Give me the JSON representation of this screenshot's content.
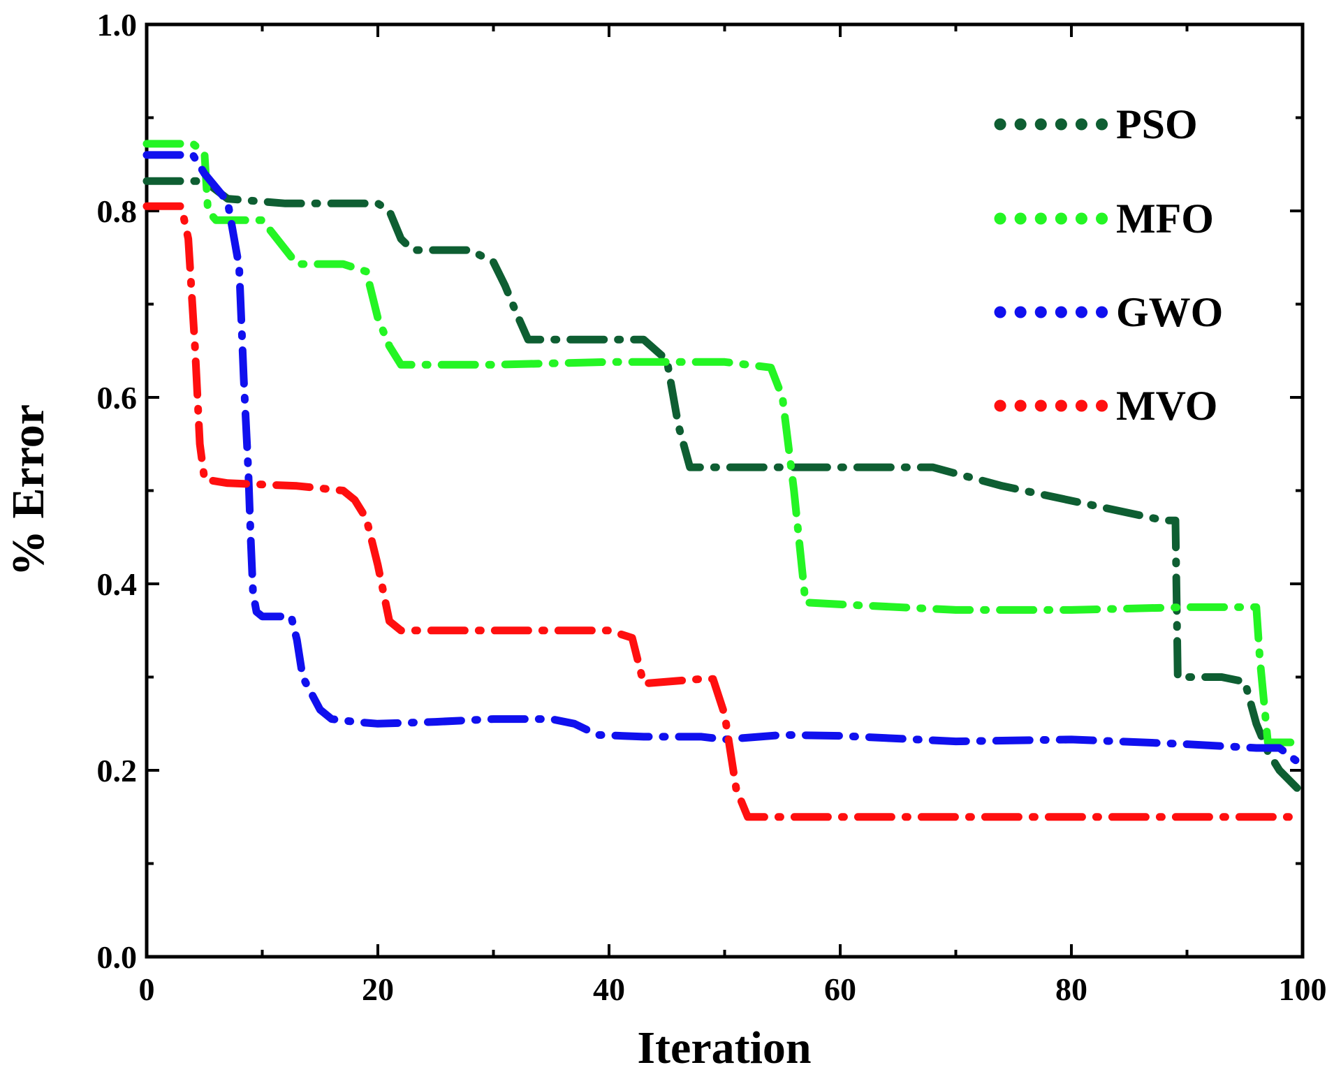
{
  "chart_data": {
    "type": "line",
    "title": "",
    "xlabel": "Iteration",
    "ylabel": "% Error",
    "xlim": [
      0,
      100
    ],
    "ylim": [
      0.0,
      1.0
    ],
    "xticks": [
      "0",
      "20",
      "40",
      "60",
      "80",
      "100"
    ],
    "xtick_values": [
      0,
      20,
      40,
      60,
      80,
      100
    ],
    "yticks": [
      "0.0",
      "0.2",
      "0.4",
      "0.6",
      "0.8",
      "1.0"
    ],
    "ytick_values": [
      0.0,
      0.2,
      0.4,
      0.6,
      0.8,
      1.0
    ],
    "grid": false,
    "legend_position": "top-right",
    "series": [
      {
        "name": "PSO",
        "color": "#0e5e32",
        "x": [
          0,
          5,
          7,
          12,
          20,
          21,
          22,
          23,
          28,
          30,
          31,
          32,
          33,
          35,
          43,
          45,
          46,
          47,
          55,
          68,
          74,
          88,
          89,
          89.2,
          93,
          95,
          96,
          97,
          98,
          100
        ],
        "y": [
          0.832,
          0.832,
          0.813,
          0.808,
          0.808,
          0.8,
          0.77,
          0.758,
          0.758,
          0.745,
          0.72,
          0.69,
          0.662,
          0.662,
          0.662,
          0.64,
          0.57,
          0.525,
          0.525,
          0.525,
          0.505,
          0.468,
          0.468,
          0.3,
          0.3,
          0.295,
          0.25,
          0.22,
          0.2,
          0.175
        ]
      },
      {
        "name": "MFO",
        "color": "#24f524",
        "x": [
          0,
          4,
          5,
          5.3,
          6,
          10,
          13,
          17,
          19,
          20,
          21,
          22,
          30,
          40,
          50,
          54,
          55,
          56,
          57,
          60,
          70,
          80,
          90,
          96,
          96.3,
          97,
          98,
          100
        ],
        "y": [
          0.872,
          0.872,
          0.862,
          0.8,
          0.79,
          0.79,
          0.743,
          0.743,
          0.735,
          0.685,
          0.655,
          0.635,
          0.635,
          0.638,
          0.638,
          0.632,
          0.6,
          0.5,
          0.38,
          0.378,
          0.372,
          0.372,
          0.375,
          0.375,
          0.32,
          0.23,
          0.23,
          0.23
        ]
      },
      {
        "name": "GWO",
        "color": "#1010ee",
        "x": [
          0,
          4,
          5,
          7,
          8,
          8.4,
          8.8,
          9,
          9.2,
          9.5,
          10,
          12.5,
          13,
          13.5,
          15,
          16,
          18,
          20,
          25,
          30,
          35,
          37,
          39,
          43,
          48,
          50,
          55,
          60,
          70,
          80,
          90,
          96,
          98,
          100
        ],
        "y": [
          0.86,
          0.86,
          0.84,
          0.81,
          0.74,
          0.62,
          0.52,
          0.45,
          0.39,
          0.37,
          0.365,
          0.365,
          0.34,
          0.3,
          0.265,
          0.255,
          0.252,
          0.25,
          0.252,
          0.255,
          0.255,
          0.25,
          0.238,
          0.236,
          0.236,
          0.233,
          0.238,
          0.237,
          0.231,
          0.233,
          0.228,
          0.224,
          0.224,
          0.205
        ]
      },
      {
        "name": "MVO",
        "color": "#ff0f0f",
        "x": [
          0,
          3,
          3.6,
          4.2,
          4.6,
          5,
          7,
          13,
          17,
          18,
          19,
          20,
          21,
          22,
          30,
          40,
          42,
          43,
          48,
          49,
          50,
          51,
          52,
          53,
          60,
          70,
          80,
          90,
          100
        ],
        "y": [
          0.805,
          0.805,
          0.77,
          0.65,
          0.55,
          0.512,
          0.508,
          0.505,
          0.5,
          0.49,
          0.47,
          0.42,
          0.36,
          0.35,
          0.35,
          0.35,
          0.342,
          0.293,
          0.298,
          0.298,
          0.26,
          0.18,
          0.15,
          0.15,
          0.15,
          0.15,
          0.15,
          0.15,
          0.15
        ]
      }
    ]
  }
}
